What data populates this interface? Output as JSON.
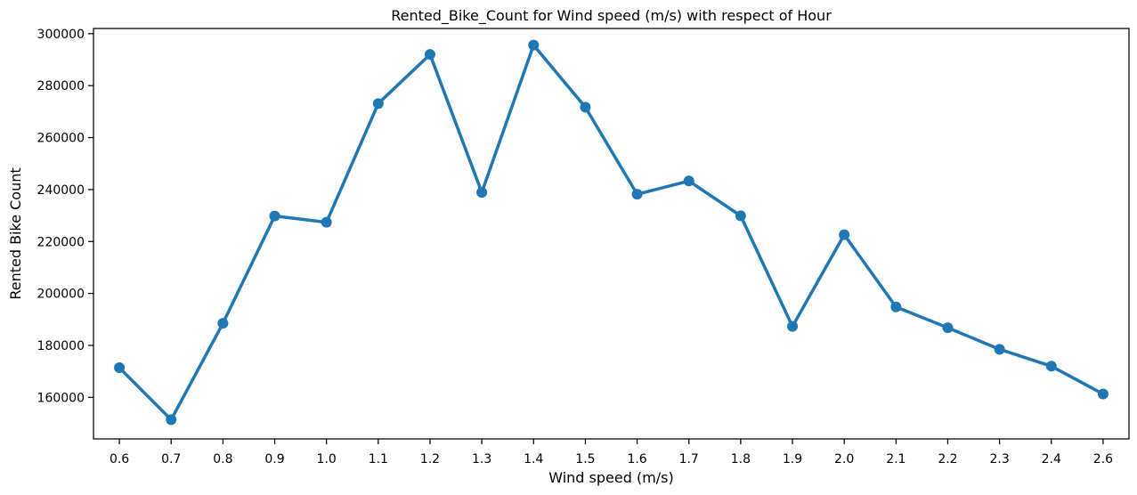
{
  "chart_data": {
    "type": "line",
    "title": "Rented_Bike_Count for Wind speed (m/s) with respect of Hour",
    "xlabel": "Wind speed (m/s)",
    "ylabel": "Rented Bike Count",
    "categories": [
      "0.6",
      "0.7",
      "0.8",
      "0.9",
      "1.0",
      "1.1",
      "1.2",
      "1.3",
      "1.4",
      "1.5",
      "1.6",
      "1.7",
      "1.8",
      "1.9",
      "2.0",
      "2.1",
      "2.2",
      "2.3",
      "2.4",
      "2.6"
    ],
    "series": [
      {
        "values": [
          171400,
          151400,
          188500,
          229800,
          227400,
          273100,
          292000,
          238900,
          295600,
          271700,
          238200,
          243300,
          229900,
          187300,
          222600,
          194800,
          186800,
          178500,
          172000,
          161300
        ]
      }
    ],
    "ylim": [
      144000,
      302000
    ],
    "yticks": [
      160000,
      180000,
      200000,
      220000,
      240000,
      260000,
      280000,
      300000
    ],
    "grid": false,
    "legend": "none",
    "colors": {
      "line": "#1f77b4"
    }
  }
}
